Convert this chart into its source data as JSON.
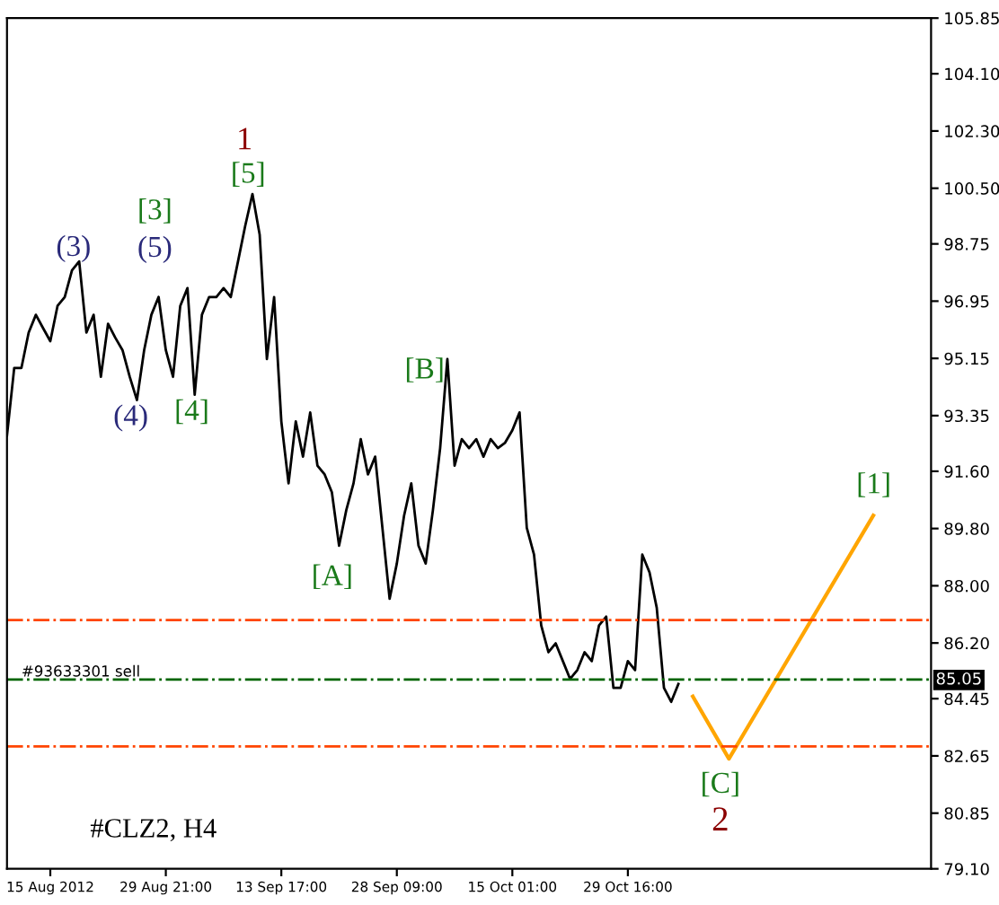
{
  "chart_data": {
    "type": "line",
    "categories": [
      null,
      null,
      null,
      null,
      null,
      null,
      "15 Aug 2012",
      null,
      null,
      null,
      null,
      null,
      null,
      null,
      null,
      null,
      null,
      null,
      null,
      null,
      null,
      null,
      "29 Aug 21:00",
      null,
      null,
      null,
      null,
      null,
      null,
      null,
      null,
      null,
      null,
      null,
      null,
      null,
      null,
      null,
      "13 Sep 17:00",
      null,
      null,
      null,
      null,
      null,
      null,
      null,
      null,
      null,
      null,
      null,
      null,
      null,
      null,
      null,
      "28 Sep 09:00",
      null,
      null,
      null,
      null,
      null,
      null,
      null,
      null,
      null,
      null,
      null,
      null,
      null,
      null,
      null,
      "15 Oct 01:00",
      null,
      null,
      null,
      null,
      null,
      null,
      null,
      null,
      null,
      null,
      null,
      null,
      null,
      null,
      null,
      "29 Oct 16:00",
      null,
      null,
      null,
      null,
      null,
      null,
      null,
      null,
      null,
      null,
      null,
      null,
      null,
      null,
      null,
      null,
      null,
      null,
      null,
      null,
      null,
      null,
      null,
      null,
      null,
      null,
      null,
      null,
      null,
      null,
      null,
      null,
      null,
      null,
      null,
      null,
      null,
      null,
      null,
      null,
      null,
      null
    ],
    "series": [
      {
        "color": "#000000",
        "values": [
          92.73,
          94.85,
          94.85,
          95.96,
          96.52,
          96.1,
          95.69,
          96.8,
          97.08,
          97.92,
          98.2,
          95.96,
          96.52,
          94.57,
          96.24,
          95.8,
          95.41,
          94.57,
          93.84,
          95.41,
          96.52,
          97.08,
          95.41,
          94.57,
          96.8,
          97.36,
          94.01,
          96.52,
          97.08,
          97.08,
          97.36,
          97.08,
          98.2,
          99.32,
          100.32,
          99.04,
          95.13,
          97.08,
          93.17,
          91.22,
          93.17,
          92.06,
          93.45,
          91.78,
          91.5,
          90.94,
          89.26,
          90.38,
          91.22,
          92.61,
          91.5,
          92.06,
          89.82,
          87.59,
          88.7,
          90.2,
          91.22,
          89.26,
          88.7,
          90.38,
          92.33,
          95.13,
          91.78,
          92.61,
          92.33,
          92.61,
          92.06,
          92.61,
          92.33,
          92.5,
          92.89,
          93.45,
          89.82,
          88.98,
          86.75,
          85.91,
          86.19,
          85.63,
          85.07,
          85.35,
          85.91,
          85.63,
          86.75,
          87.03,
          84.79,
          84.79,
          85.63,
          85.35,
          88.98,
          88.42,
          87.31,
          84.79,
          84.35,
          84.91,
          null,
          null,
          null,
          null,
          null,
          null,
          null,
          null,
          null,
          null,
          null,
          null,
          null,
          null,
          null,
          null,
          null,
          null,
          null,
          null,
          null,
          null,
          null,
          null,
          null,
          null,
          null,
          null,
          null,
          null,
          null,
          null,
          null,
          null,
          null
        ]
      },
      {
        "color": "#ffa500",
        "values": [
          null,
          null,
          null,
          null,
          null,
          null,
          null,
          null,
          null,
          null,
          null,
          null,
          null,
          null,
          null,
          null,
          null,
          null,
          null,
          null,
          null,
          null,
          null,
          null,
          null,
          null,
          null,
          null,
          null,
          null,
          null,
          null,
          null,
          null,
          null,
          null,
          null,
          null,
          null,
          null,
          null,
          null,
          null,
          null,
          null,
          null,
          null,
          null,
          null,
          null,
          null,
          null,
          null,
          null,
          null,
          null,
          null,
          null,
          null,
          null,
          null,
          null,
          null,
          null,
          null,
          null,
          null,
          null,
          null,
          null,
          null,
          null,
          null,
          null,
          null,
          null,
          null,
          null,
          null,
          null,
          null,
          null,
          null,
          null,
          null,
          null,
          null,
          null,
          null,
          null,
          null,
          null,
          null,
          null,
          null,
          84.52,
          null,
          null,
          null,
          null,
          82.56,
          null,
          null,
          null,
          null,
          null,
          null,
          null,
          null,
          null,
          null,
          null,
          null,
          null,
          null,
          null,
          null,
          null,
          null,
          null,
          90.21,
          null,
          null,
          null,
          null,
          null,
          null,
          null,
          null
        ]
      }
    ],
    "ylim": [
      79.1,
      105.85
    ],
    "yticks": [
      {
        "value": 79.1,
        "label": "79.10"
      },
      {
        "value": 80.85,
        "label": "80.85"
      },
      {
        "value": 82.65,
        "label": "82.65"
      },
      {
        "value": 84.45,
        "label": "84.45"
      },
      {
        "value": 86.2,
        "label": "86.20"
      },
      {
        "value": 88.0,
        "label": "88.00"
      },
      {
        "value": 89.8,
        "label": "89.80"
      },
      {
        "value": 91.6,
        "label": "91.60"
      },
      {
        "value": 93.35,
        "label": "93.35"
      },
      {
        "value": 95.15,
        "label": "95.15"
      },
      {
        "value": 96.95,
        "label": "96.95"
      },
      {
        "value": 98.75,
        "label": "98.75"
      },
      {
        "value": 100.5,
        "label": "100.50"
      },
      {
        "value": 102.3,
        "label": "102.30"
      },
      {
        "value": 104.1,
        "label": "104.10"
      },
      {
        "value": 105.85,
        "label": "105.85"
      }
    ],
    "ref_lines": [
      {
        "axis": "y",
        "value": 86.92,
        "color": "#ff4500",
        "line_style": "dashdot"
      },
      {
        "axis": "y",
        "value": 85.05,
        "label": "#93633301 sell",
        "color": "#006400",
        "line_style": "dashdot"
      },
      {
        "axis": "y",
        "value": 82.95,
        "color": "#ff4500",
        "line_style": "dashdot"
      }
    ],
    "annotations": [
      "1",
      "[5]",
      "[3]",
      "(5)",
      "(3)",
      "(4)",
      "[4]",
      "[A]",
      "[B]",
      "[C]",
      "2",
      "[1]",
      "#CLZ2, H4",
      "85.05"
    ],
    "grid": false
  }
}
